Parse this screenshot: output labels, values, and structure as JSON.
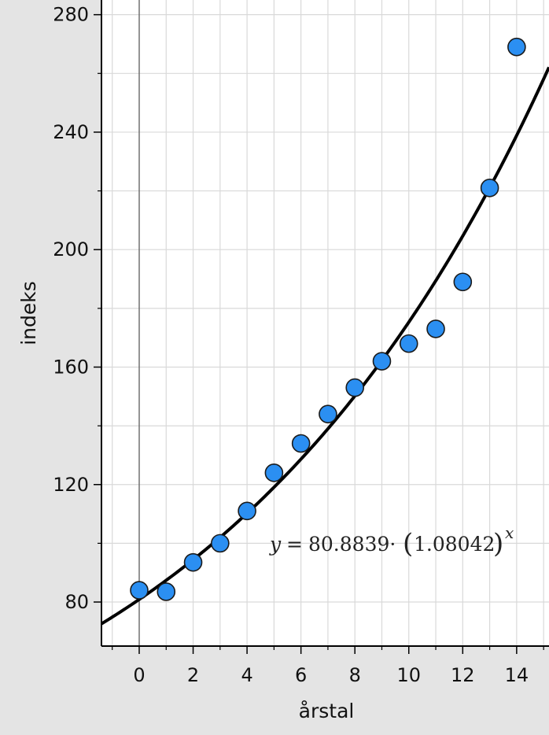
{
  "chart_data": {
    "type": "scatter",
    "xlabel": "årstal",
    "ylabel": "indeks",
    "xlim": [
      -1.4,
      15.2
    ],
    "ylim": [
      65,
      285
    ],
    "x_ticks": [
      0,
      2,
      4,
      6,
      8,
      10,
      12,
      14
    ],
    "y_ticks": [
      80,
      120,
      160,
      200,
      240,
      280
    ],
    "grid": true,
    "series": [
      {
        "x": [
          0,
          1,
          2,
          3,
          4,
          5,
          6,
          7,
          8,
          9,
          10,
          11,
          12,
          13,
          14
        ],
        "y": [
          84,
          83.5,
          93.5,
          100,
          111,
          124,
          134,
          144,
          153,
          162,
          168,
          173,
          189,
          221,
          269
        ]
      }
    ],
    "regression": {
      "model": "exponential",
      "a": 80.8839,
      "b": 1.08042
    },
    "equation_label": {
      "lhs": "y",
      "eq": "=",
      "coef": "80.8839·",
      "open": "(",
      "base": "1.08042",
      "close": ")",
      "exp": "x"
    },
    "colors": {
      "background": "#e4e4e4",
      "plot_area": "#ffffff",
      "grid": "#d9d9d9",
      "marker_fill": "#2b8ff2",
      "marker_edge": "#1a1a1a",
      "curve": "#000000"
    }
  }
}
